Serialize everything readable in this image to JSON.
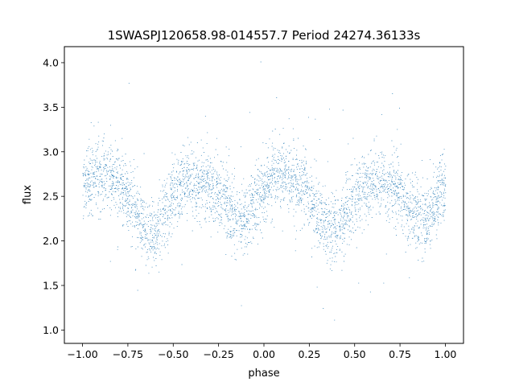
{
  "chart_data": {
    "type": "scatter",
    "title": "1SWASPJ120658.98-014557.7 Period 24274.36133s",
    "xlabel": "phase",
    "ylabel": "flux",
    "xlim": [
      -1.1,
      1.1
    ],
    "ylim": [
      0.85,
      4.18
    ],
    "x_ticks": [
      -1.0,
      -0.75,
      -0.5,
      -0.25,
      0.0,
      0.25,
      0.5,
      0.75,
      1.0
    ],
    "x_tick_labels": [
      "−1.00",
      "−0.75",
      "−0.50",
      "−0.25",
      "0.00",
      "0.25",
      "0.50",
      "0.75",
      "1.00"
    ],
    "y_ticks": [
      1.0,
      1.5,
      2.0,
      2.5,
      3.0,
      3.5,
      4.0
    ],
    "y_tick_labels": [
      "1.0",
      "1.5",
      "2.0",
      "2.5",
      "3.0",
      "3.5",
      "4.0"
    ],
    "grid": false,
    "marker_color": "#1f77b4",
    "series": [
      {
        "x": [
          -1.0,
          -0.95,
          -0.9,
          -0.85,
          -0.8,
          -0.75,
          -0.7,
          -0.65,
          -0.6,
          -0.55,
          -0.5,
          -0.45,
          -0.4,
          -0.35,
          -0.3,
          -0.25,
          -0.2,
          -0.15,
          -0.1,
          -0.05,
          0.0,
          0.05,
          0.1,
          0.15,
          0.2,
          0.25,
          0.3,
          0.35,
          0.4,
          0.45,
          0.5,
          0.55,
          0.6,
          0.65,
          0.7,
          0.75,
          0.8,
          0.85,
          0.9,
          0.95,
          1.0
        ],
        "y": [
          2.62,
          2.72,
          2.74,
          2.7,
          2.62,
          2.5,
          2.3,
          2.12,
          2.1,
          2.32,
          2.5,
          2.62,
          2.66,
          2.64,
          2.6,
          2.52,
          2.42,
          2.2,
          2.22,
          2.45,
          2.6,
          2.72,
          2.74,
          2.7,
          2.62,
          2.5,
          2.3,
          2.12,
          2.1,
          2.32,
          2.5,
          2.62,
          2.66,
          2.64,
          2.6,
          2.52,
          2.42,
          2.2,
          2.22,
          2.45,
          2.6
        ],
        "scatter": 0.19
      }
    ]
  }
}
